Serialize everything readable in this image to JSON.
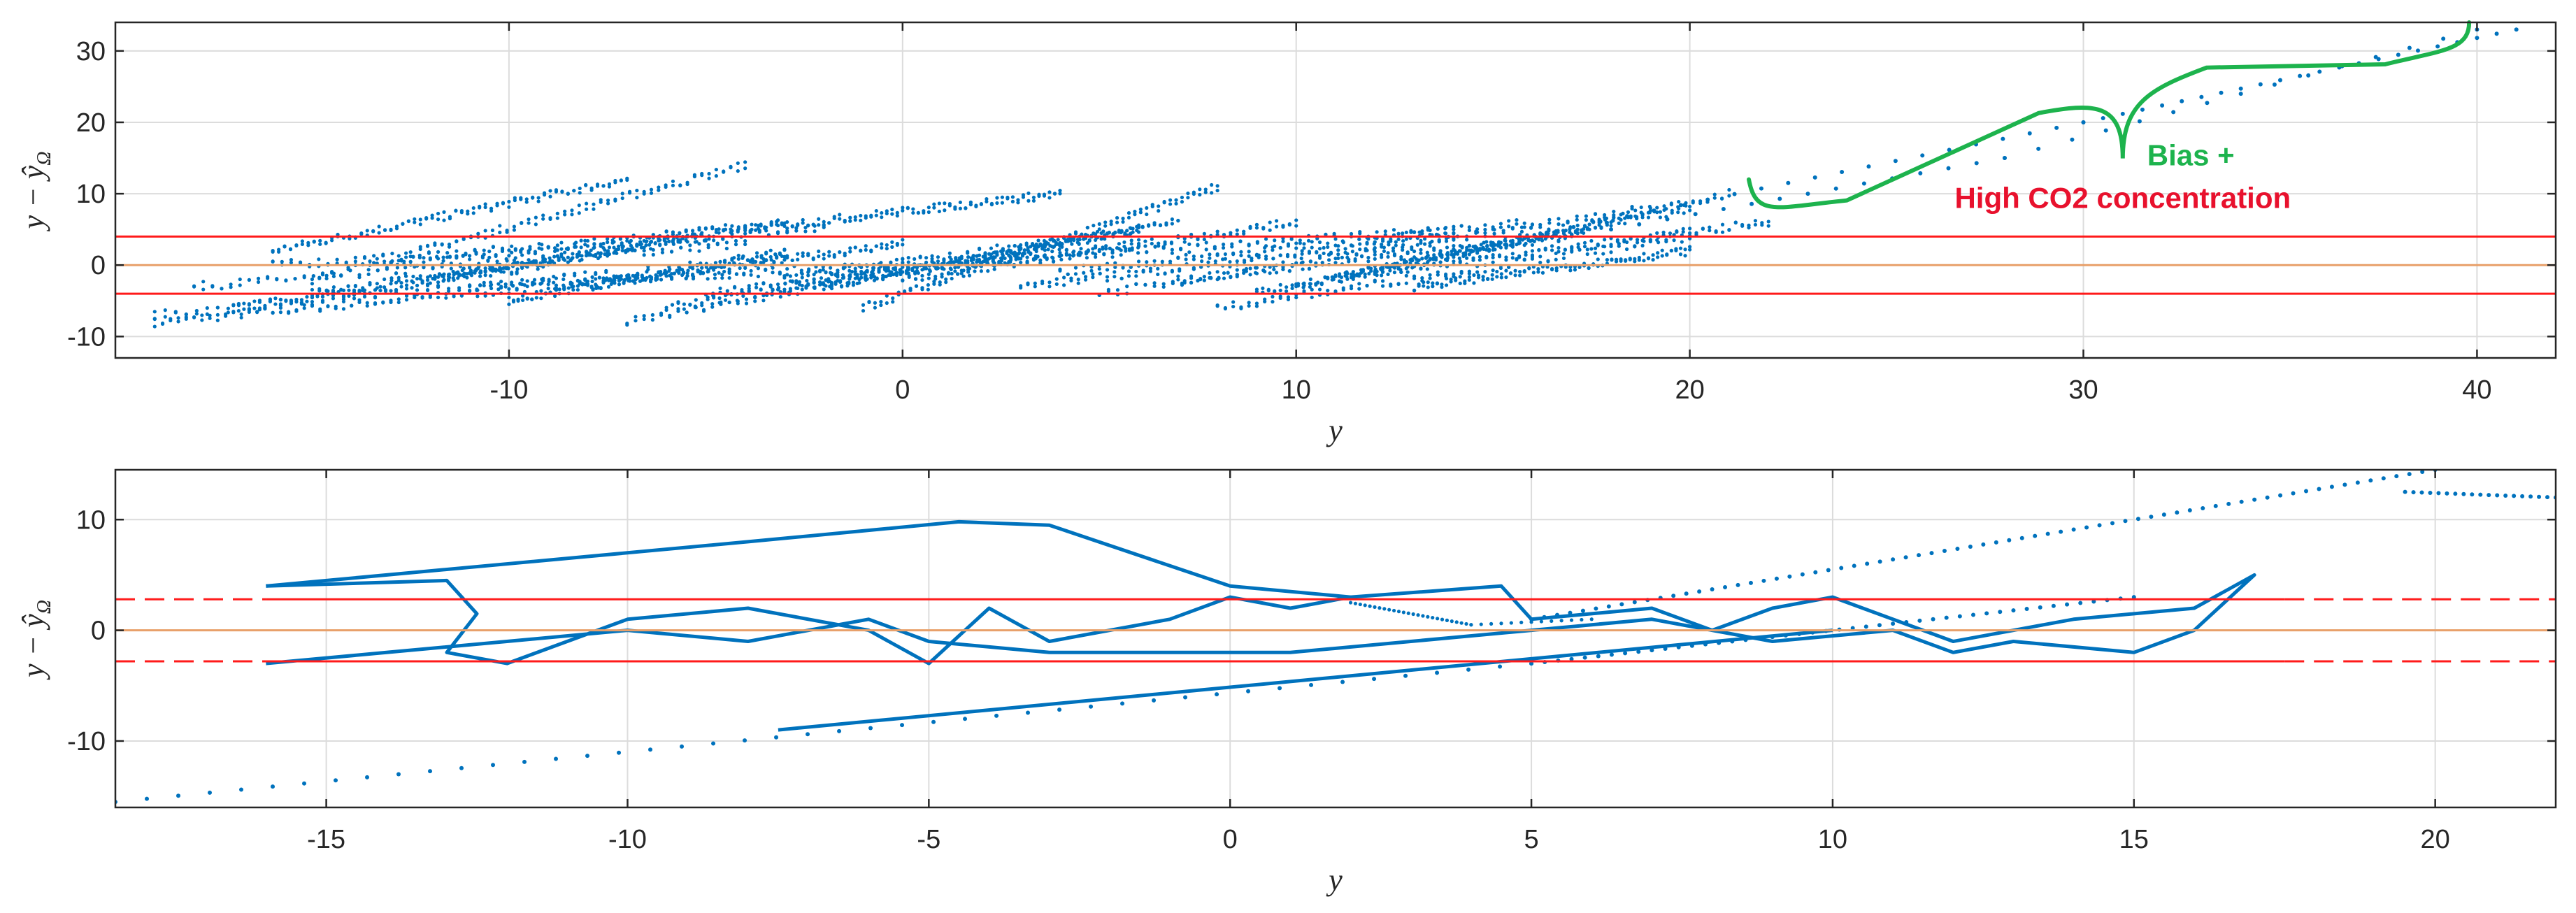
{
  "colors": {
    "data": "#0072BD",
    "bound": "#ff1a1a",
    "zero": "#e8a06a",
    "brace": "#1db34d",
    "annotation_red": "#e8112d",
    "grid": "#dcdcdc"
  },
  "chart_data": [
    {
      "type": "scatter",
      "xlabel": "y",
      "ylabel": "y − ŷ",
      "ylabel_subscript": "Ω",
      "xlim": [
        -20,
        42
      ],
      "ylim": [
        -13,
        34
      ],
      "xticks": [
        -10,
        0,
        10,
        20,
        30,
        40
      ],
      "yticks": [
        -10,
        0,
        10,
        20,
        30
      ],
      "grid": true,
      "upper_bound": 4,
      "lower_bound": -4,
      "zero_line": 0,
      "bound_style": "solid",
      "series": [
        {
          "segments": [
            [
              [
                -19,
                -8
              ],
              [
                -7,
                -2
              ]
            ],
            [
              [
                -19,
                -7
              ],
              [
                -3,
                1
              ]
            ],
            [
              [
                -18,
                -3
              ],
              [
                -4,
                3
              ]
            ],
            [
              [
                -17,
                -6
              ],
              [
                -9,
                0
              ]
            ],
            [
              [
                -16,
                2
              ],
              [
                -7,
                12
              ]
            ],
            [
              [
                -16,
                0
              ],
              [
                -2,
                5
              ]
            ],
            [
              [
                -15,
                -4
              ],
              [
                -4,
                5
              ]
            ],
            [
              [
                -15,
                -2
              ],
              [
                -4,
                14
              ]
            ],
            [
              [
                -13,
                0
              ],
              [
                -3,
                6
              ]
            ],
            [
              [
                -12,
                -2
              ],
              [
                -5,
                4
              ]
            ],
            [
              [
                -11,
                -3
              ],
              [
                0,
                0
              ]
            ],
            [
              [
                -10,
                -5
              ],
              [
                -3,
                2
              ]
            ],
            [
              [
                -8,
                -3
              ],
              [
                0,
                3
              ]
            ],
            [
              [
                -7,
                -8
              ],
              [
                6,
                5
              ]
            ],
            [
              [
                -6,
                -6
              ],
              [
                3,
                2
              ]
            ],
            [
              [
                -5,
                -4
              ],
              [
                6,
                3
              ]
            ],
            [
              [
                -4,
                5
              ],
              [
                4,
                10
              ]
            ],
            [
              [
                -3,
                -2
              ],
              [
                6,
                5
              ]
            ],
            [
              [
                -2,
                -3
              ],
              [
                7,
                6
              ]
            ],
            [
              [
                -1,
                -6
              ],
              [
                8,
                11
              ]
            ],
            [
              [
                0,
                -2
              ],
              [
                10,
                6
              ]
            ],
            [
              [
                1,
                0
              ],
              [
                14,
                5
              ]
            ],
            [
              [
                3,
                -3
              ],
              [
                14,
                4
              ]
            ],
            [
              [
                4,
                -1
              ],
              [
                16,
                6
              ]
            ],
            [
              [
                5,
                -4
              ],
              [
                19,
                8
              ]
            ],
            [
              [
                7,
                -2
              ],
              [
                17,
                4
              ]
            ],
            [
              [
                8,
                -6
              ],
              [
                20,
                4
              ]
            ],
            [
              [
                9,
                -4
              ],
              [
                18,
                6
              ]
            ],
            [
              [
                10,
                -3
              ],
              [
                21,
                10
              ]
            ],
            [
              [
                11,
                -2
              ],
              [
                20,
                8
              ]
            ],
            [
              [
                12,
                -1
              ],
              [
                22,
                6
              ]
            ],
            [
              [
                13,
                -3
              ],
              [
                20,
                2
              ]
            ]
          ],
          "dotted_tail": [
            [
              18,
              5
            ],
            [
              28,
              15
            ],
            [
              40,
              33
            ]
          ],
          "dotted_tail2": [
            [
              15,
              3
            ],
            [
              30,
              20
            ],
            [
              41,
              33
            ]
          ]
        }
      ],
      "annotations": [
        {
          "text": "Bias +",
          "color": "green",
          "x": 31,
          "y": 14
        },
        {
          "text": "High CO2 concentration",
          "color": "red",
          "x": 31,
          "y": 8
        }
      ],
      "brace": {
        "from": [
          21.5,
          12
        ],
        "tip": [
          31,
          12
        ],
        "to": [
          39.8,
          34
        ]
      }
    },
    {
      "type": "line",
      "xlabel": "y",
      "ylabel": "y − ŷ",
      "ylabel_subscript": "Ω",
      "xlim": [
        -18.5,
        22
      ],
      "ylim": [
        -16,
        14.5
      ],
      "xticks": [
        -15,
        -10,
        -5,
        0,
        5,
        10,
        15,
        20
      ],
      "yticks": [
        -10,
        0,
        10
      ],
      "grid": true,
      "upper_bound": 2.8,
      "lower_bound": -2.8,
      "zero_line": 0,
      "bound_style": "dashed-outside-solid-inside",
      "series": [
        {
          "trajectory": [
            [
              -16,
              4
            ],
            [
              -13,
              4.5
            ],
            [
              -12.5,
              1.5
            ],
            [
              -13,
              -2
            ],
            [
              -12,
              -3
            ],
            [
              -10,
              1
            ],
            [
              -8,
              2
            ],
            [
              -6,
              0
            ],
            [
              -5,
              -3
            ],
            [
              -4,
              2
            ],
            [
              -3,
              -1
            ],
            [
              -1,
              1
            ],
            [
              0,
              3
            ],
            [
              1,
              2
            ],
            [
              2,
              3
            ],
            [
              4.5,
              4
            ],
            [
              5,
              1
            ],
            [
              7,
              2
            ],
            [
              8,
              0
            ],
            [
              9,
              2
            ],
            [
              10,
              3
            ],
            [
              12,
              -1
            ],
            [
              14,
              1
            ],
            [
              16,
              2
            ],
            [
              17,
              5
            ],
            [
              16,
              0
            ],
            [
              15,
              -2
            ],
            [
              13,
              -1
            ],
            [
              12,
              -2
            ],
            [
              11,
              0
            ],
            [
              9,
              -1
            ],
            [
              7,
              1
            ],
            [
              5,
              0
            ],
            [
              3,
              -1
            ],
            [
              1,
              -2
            ],
            [
              -1,
              -2
            ],
            [
              -3,
              -2
            ],
            [
              -5,
              -1
            ],
            [
              -6,
              1
            ],
            [
              -8,
              -1
            ],
            [
              -10,
              0
            ],
            [
              -12,
              -1
            ],
            [
              -14,
              -2
            ],
            [
              -16,
              -3
            ]
          ],
          "bump": [
            [
              -16,
              4
            ],
            [
              -8,
              8
            ],
            [
              -4.5,
              9.8
            ],
            [
              -3,
              9.5
            ],
            [
              0,
              4
            ],
            [
              2,
              3
            ]
          ],
          "dotted_dip": [
            [
              2,
              2.5
            ],
            [
              4,
              0.5
            ],
            [
              6,
              1
            ]
          ],
          "line_segment": [
            [
              -7.5,
              -9
            ],
            [
              10,
              0
            ]
          ],
          "dotted_low": [
            [
              -18.5,
              -15.5
            ],
            [
              5,
              -3
            ],
            [
              15,
              3
            ]
          ],
          "dotted_high": [
            [
              5,
              1
            ],
            [
              20,
              14.5
            ]
          ],
          "dotted_flat": [
            [
              19.5,
              12.5
            ],
            [
              22,
              12
            ]
          ]
        }
      ]
    }
  ]
}
